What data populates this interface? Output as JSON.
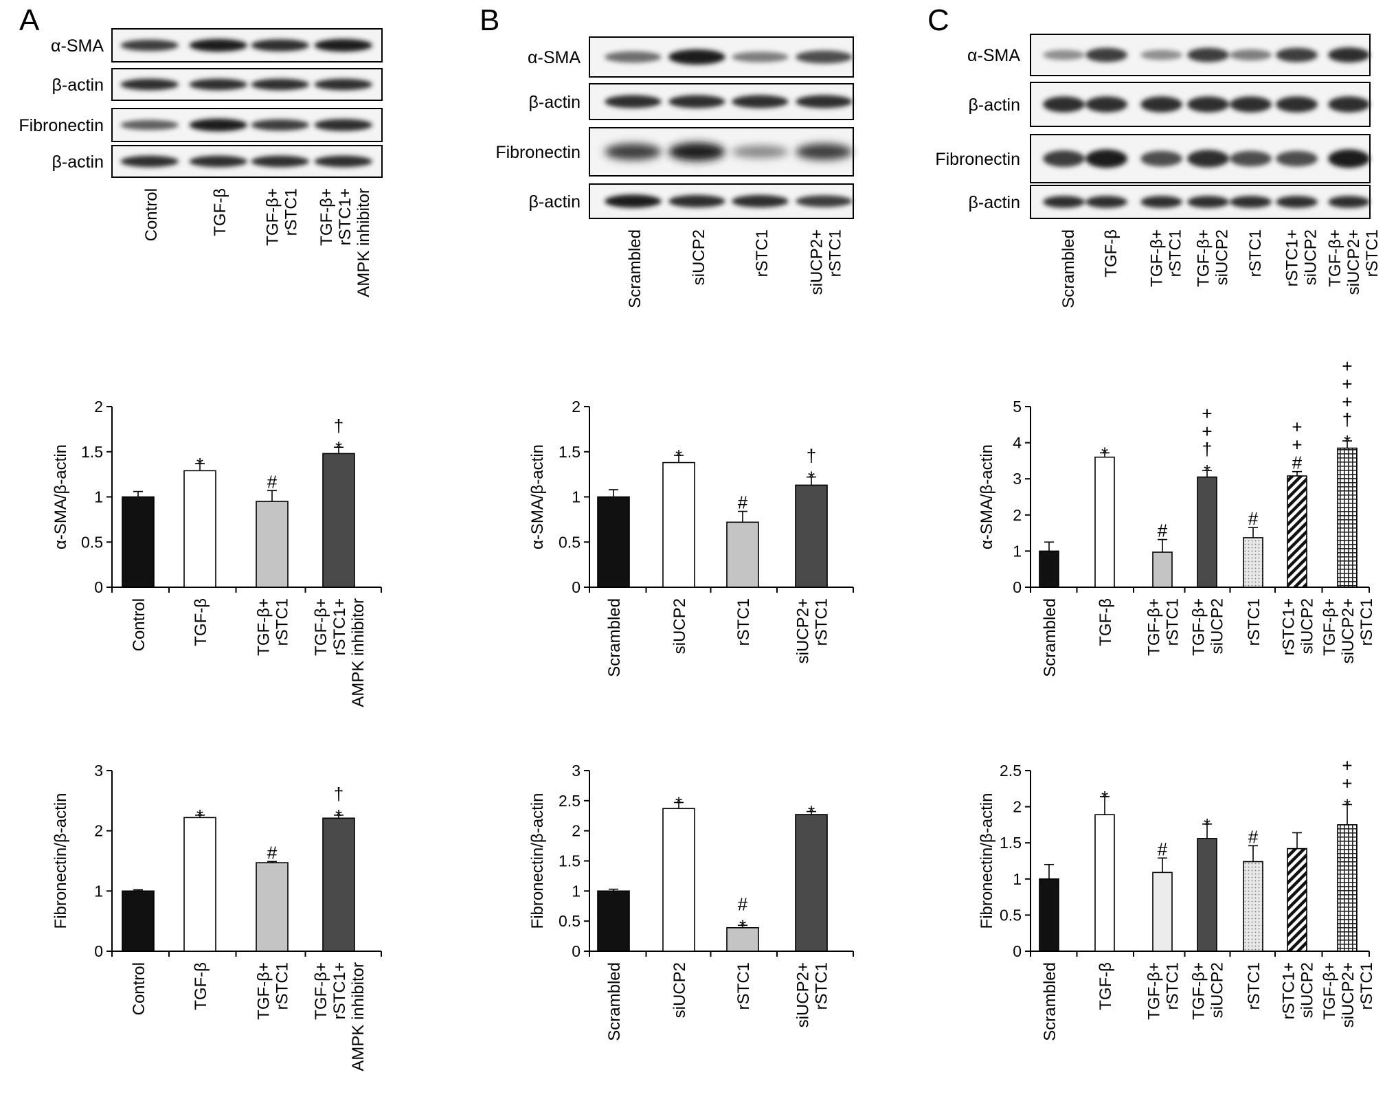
{
  "panels": [
    {
      "letter": "A",
      "blot_rows": [
        "α-SMA",
        "β-actin",
        "Fibronectin",
        "β-actin"
      ],
      "blot_lanes": [
        {
          "lines": [
            "Control"
          ]
        },
        {
          "lines": [
            "TGF-β"
          ]
        },
        {
          "lines": [
            "TGF-β+",
            "rSTC1"
          ]
        },
        {
          "lines": [
            "TGF-β+",
            "rSTC1+",
            "AMPK inhibitor"
          ]
        }
      ]
    },
    {
      "letter": "B",
      "blot_rows": [
        "α-SMA",
        "β-actin",
        "Fibronectin",
        "β-actin"
      ],
      "blot_lanes": [
        {
          "lines": [
            "Scrambled"
          ]
        },
        {
          "lines": [
            "siUCP2"
          ]
        },
        {
          "lines": [
            "rSTC1"
          ]
        },
        {
          "lines": [
            "siUCP2+",
            "rSTC1"
          ]
        }
      ]
    },
    {
      "letter": "C",
      "blot_rows": [
        "α-SMA",
        "β-actin",
        "Fibronectin",
        "β-actin"
      ],
      "blot_lanes": [
        {
          "lines": [
            "Scrambled"
          ]
        },
        {
          "lines": [
            "TGF-β"
          ]
        },
        {
          "lines": [
            "TGF-β+",
            "rSTC1"
          ]
        },
        {
          "lines": [
            "TGF-β+",
            "siUCP2"
          ]
        },
        {
          "lines": [
            "rSTC1"
          ]
        },
        {
          "lines": [
            "rSTC1+",
            "siUCP2"
          ]
        },
        {
          "lines": [
            "TGF-β+",
            "siUCP2+",
            "rSTC1"
          ]
        }
      ]
    }
  ],
  "chart_data": [
    {
      "panel": "A",
      "type": "bar",
      "ylabel": "α-SMA/β-actin",
      "ylim": [
        0,
        2
      ],
      "yticks": [
        "0",
        "0.5",
        "1",
        "1.5",
        "2"
      ],
      "ytick_values": [
        0,
        0.5,
        1,
        1.5,
        2
      ],
      "categories": [
        [
          "Control"
        ],
        [
          "TGF-β"
        ],
        [
          "TGF-β+",
          "rSTC1"
        ],
        [
          "TGF-β+",
          "rSTC1+",
          "AMPK inhibitor"
        ]
      ],
      "values": [
        1.0,
        1.29,
        0.95,
        1.48
      ],
      "errors": [
        0.06,
        0.08,
        0.12,
        0.07
      ],
      "fills": [
        "black",
        "white",
        "lightgray",
        "darkgray"
      ],
      "significance": [
        [],
        [
          "*"
        ],
        [
          "#"
        ],
        [
          "*",
          "†"
        ]
      ]
    },
    {
      "panel": "A",
      "type": "bar",
      "ylabel": "Fibronectin/β-actin",
      "ylim": [
        0,
        3
      ],
      "yticks": [
        "0",
        "1",
        "2",
        "3"
      ],
      "ytick_values": [
        0,
        1,
        2,
        3
      ],
      "categories": [
        [
          "Control"
        ],
        [
          "TGF-β"
        ],
        [
          "TGF-β+",
          "rSTC1"
        ],
        [
          "TGF-β+",
          "rSTC1+",
          "AMPK inhibitor"
        ]
      ],
      "values": [
        1.0,
        2.22,
        1.47,
        2.21
      ],
      "errors": [
        0.02,
        0.04,
        0.02,
        0.05
      ],
      "fills": [
        "black",
        "white",
        "lightgray",
        "darkgray"
      ],
      "significance": [
        [],
        [
          "*"
        ],
        [
          "#"
        ],
        [
          "*",
          "†"
        ]
      ]
    },
    {
      "panel": "B",
      "type": "bar",
      "ylabel": "α-SMA/β-actin",
      "ylim": [
        0,
        2
      ],
      "yticks": [
        "0",
        "0.5",
        "1",
        "1.5",
        "2"
      ],
      "ytick_values": [
        0,
        0.5,
        1,
        1.5,
        2
      ],
      "categories": [
        [
          "Scrambled"
        ],
        [
          "siUCP2"
        ],
        [
          "rSTC1"
        ],
        [
          "siUCP2+",
          "rSTC1"
        ]
      ],
      "values": [
        1.0,
        1.38,
        0.72,
        1.13
      ],
      "errors": [
        0.08,
        0.08,
        0.12,
        0.09
      ],
      "fills": [
        "black",
        "white",
        "lightgray",
        "darkgray"
      ],
      "significance": [
        [],
        [
          "*"
        ],
        [
          "#"
        ],
        [
          "*",
          "†"
        ]
      ]
    },
    {
      "panel": "B",
      "type": "bar",
      "ylabel": "Fibronectin/β-actin",
      "ylim": [
        0,
        3
      ],
      "yticks": [
        "0",
        "0.5",
        "1",
        "1.5",
        "2",
        "2.5",
        "3"
      ],
      "ytick_values": [
        0,
        0.5,
        1,
        1.5,
        2,
        2.5,
        3
      ],
      "categories": [
        [
          "Scrambled"
        ],
        [
          "siUCP2"
        ],
        [
          "rSTC1"
        ],
        [
          "siUCP2+",
          "rSTC1"
        ]
      ],
      "values": [
        1.0,
        2.37,
        0.39,
        2.27
      ],
      "errors": [
        0.03,
        0.1,
        0.04,
        0.05
      ],
      "fills": [
        "black",
        "white",
        "lightgray",
        "darkgray"
      ],
      "significance": [
        [],
        [
          "*"
        ],
        [
          "*",
          "#"
        ],
        [
          "*"
        ]
      ]
    },
    {
      "panel": "C",
      "type": "bar",
      "ylabel": "α-SMA/β-actin",
      "ylim": [
        0,
        5
      ],
      "yticks": [
        "0",
        "1",
        "2",
        "3",
        "4",
        "5"
      ],
      "ytick_values": [
        0,
        1,
        2,
        3,
        4,
        5
      ],
      "categories": [
        [
          "Scrambled"
        ],
        [
          "TGF-β"
        ],
        [
          "TGF-β+",
          "rSTC1"
        ],
        [
          "TGF-β+",
          "siUCP2"
        ],
        [
          "rSTC1"
        ],
        [
          "rSTC1+",
          "siUCP2"
        ],
        [
          "TGF-β+",
          "siUCP2+",
          "rSTC1"
        ]
      ],
      "values": [
        1.0,
        3.6,
        0.97,
        3.05,
        1.37,
        3.08,
        3.85
      ],
      "errors": [
        0.25,
        0.12,
        0.35,
        0.18,
        0.28,
        0.12,
        0.2
      ],
      "fills": [
        "black",
        "white",
        "lightgray",
        "darkgray",
        "dotted",
        "hatched",
        "checkered"
      ],
      "significance": [
        [],
        [
          "*"
        ],
        [
          "#"
        ],
        [
          "*",
          "†",
          "+",
          "+"
        ],
        [
          "#"
        ],
        [
          "#",
          "+",
          "+"
        ],
        [
          "*",
          "†",
          "+",
          "+",
          "+"
        ]
      ]
    },
    {
      "panel": "C",
      "type": "bar",
      "ylabel": "Fibronectin/β-actin",
      "ylim": [
        0,
        2.5
      ],
      "yticks": [
        "0",
        "0.5",
        "1",
        "1.5",
        "2",
        "2.5"
      ],
      "ytick_values": [
        0,
        0.5,
        1,
        1.5,
        2,
        2.5
      ],
      "categories": [
        [
          "Scrambled"
        ],
        [
          "TGF-β"
        ],
        [
          "TGF-β+",
          "rSTC1"
        ],
        [
          "TGF-β+",
          "siUCP2"
        ],
        [
          "rSTC1"
        ],
        [
          "rSTC1+",
          "siUCP2"
        ],
        [
          "TGF-β+",
          "siUCP2+",
          "rSTC1"
        ]
      ],
      "values": [
        1.0,
        1.89,
        1.09,
        1.56,
        1.24,
        1.42,
        1.75
      ],
      "errors": [
        0.2,
        0.25,
        0.2,
        0.2,
        0.22,
        0.22,
        0.28
      ],
      "fills": [
        "black",
        "white",
        "extralightgray",
        "darkgray",
        "dotted",
        "hatched",
        "checkered"
      ],
      "significance": [
        [],
        [
          "*"
        ],
        [
          "#"
        ],
        [
          "*"
        ],
        [
          "#"
        ],
        [],
        [
          "*",
          "+",
          "+"
        ]
      ]
    }
  ]
}
